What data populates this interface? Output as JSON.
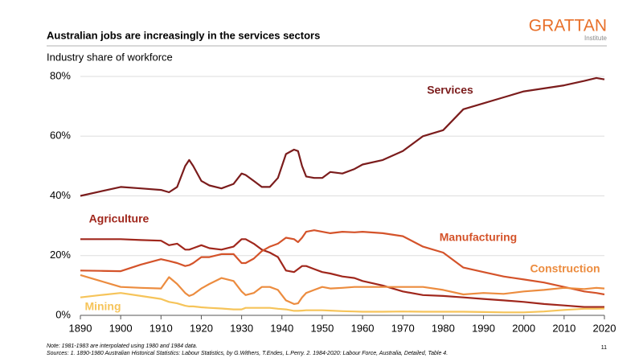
{
  "header": {
    "logo_title": "GRATTAN",
    "logo_subtitle": "Institute",
    "page_number": "11"
  },
  "chart_data": {
    "type": "line",
    "title": "Australian jobs are increasingly in the services sectors",
    "subtitle": "Industry share of workforce",
    "x": [
      1890,
      1895,
      1900,
      1905,
      1910,
      1912,
      1914,
      1916,
      1917,
      1918,
      1920,
      1922,
      1925,
      1928,
      1930,
      1931,
      1933,
      1935,
      1937,
      1939,
      1941,
      1943,
      1944,
      1945,
      1946,
      1948,
      1950,
      1952,
      1955,
      1958,
      1960,
      1965,
      1970,
      1975,
      1980,
      1985,
      1990,
      1995,
      2000,
      2005,
      2010,
      2015,
      2018,
      2020
    ],
    "series": [
      {
        "name": "Services",
        "color": "#7b1c1c",
        "values": [
          40,
          41.5,
          43,
          42.5,
          42,
          41.2,
          43,
          50,
          52,
          50,
          45,
          43.5,
          42.5,
          44,
          47.5,
          47,
          45,
          43,
          43,
          46,
          54,
          55.5,
          55,
          50,
          46.5,
          46,
          46,
          48,
          47.5,
          49,
          50.5,
          52,
          55,
          60,
          62,
          69,
          71,
          73,
          75,
          76,
          77,
          78.5,
          79.5,
          79
        ]
      },
      {
        "name": "Agriculture",
        "color": "#a0271c",
        "values": [
          25.5,
          25.5,
          25.5,
          25.2,
          25,
          23.5,
          24,
          22,
          22,
          22.5,
          23.5,
          22.5,
          22,
          23,
          25.5,
          25.5,
          24,
          22,
          21,
          19.5,
          15,
          14.5,
          15.5,
          16.5,
          16.5,
          15.5,
          14.5,
          14,
          13,
          12.5,
          11.5,
          10,
          8,
          6.8,
          6.5,
          6,
          5.5,
          5,
          4.5,
          3.8,
          3.3,
          2.8,
          2.8,
          2.8
        ]
      },
      {
        "name": "Manufacturing",
        "color": "#d4532a",
        "values": [
          15,
          14.9,
          14.8,
          17,
          18.8,
          18.2,
          17.5,
          16.5,
          16.8,
          17.5,
          19.5,
          19.5,
          20.5,
          20.5,
          17.5,
          17.5,
          19,
          21.5,
          23,
          24,
          26,
          25.5,
          24.5,
          26,
          28,
          28.5,
          28,
          27.5,
          28,
          27.8,
          28,
          27.5,
          26.5,
          23,
          21,
          16,
          14.5,
          13,
          12,
          11,
          9.5,
          8,
          7.5,
          7
        ]
      },
      {
        "name": "Construction",
        "color": "#ec8c3f",
        "values": [
          13.5,
          11.5,
          9.5,
          9.2,
          9,
          12.8,
          10.5,
          7.5,
          6.5,
          7,
          9,
          10.5,
          12.5,
          11.5,
          8,
          6.8,
          7.5,
          9.5,
          9.5,
          8.5,
          5,
          3.8,
          4,
          6,
          7.5,
          8.5,
          9.5,
          9,
          9.2,
          9.5,
          9.5,
          9.5,
          9.5,
          9.5,
          8.5,
          7,
          7.5,
          7.2,
          8,
          8.5,
          9.2,
          8.8,
          9.2,
          9
        ]
      },
      {
        "name": "Mining",
        "color": "#f6c45a",
        "values": [
          6,
          6.8,
          7.5,
          6.5,
          5.5,
          4.5,
          4,
          3.2,
          3,
          3,
          2.7,
          2.5,
          2.3,
          2,
          2,
          2.5,
          2.5,
          2.5,
          2.5,
          2.2,
          2,
          1.5,
          1.5,
          1.6,
          1.7,
          1.7,
          1.7,
          1.6,
          1.4,
          1.3,
          1.2,
          1.2,
          1.3,
          1.2,
          1.2,
          1.2,
          1.1,
          1,
          1,
          1.3,
          1.8,
          2.2,
          2.2,
          2.3
        ]
      }
    ],
    "xlim": [
      1890,
      2020
    ],
    "ylim": [
      0,
      80
    ],
    "xticks": [
      1890,
      1900,
      1910,
      1920,
      1930,
      1940,
      1950,
      1960,
      1970,
      1980,
      1990,
      2000,
      2010,
      2020
    ],
    "yticks": [
      {
        "value": 0,
        "label": "0%"
      },
      {
        "value": 20,
        "label": "20%"
      },
      {
        "value": 40,
        "label": "40%"
      },
      {
        "value": 60,
        "label": "60%"
      },
      {
        "value": 80,
        "label": "80%"
      }
    ],
    "grid": true,
    "notes": [
      "Note: 1981-1983 are interpolated using 1980 and 1984 data.",
      "Sources: 1. 1890-1980 Australian Historical Statistics: Labour Statistics, by G.Withers, T.Endes, L.Perry. 2. 1984-2020: Labour Force, Australia, Detailed, Table 4."
    ]
  }
}
